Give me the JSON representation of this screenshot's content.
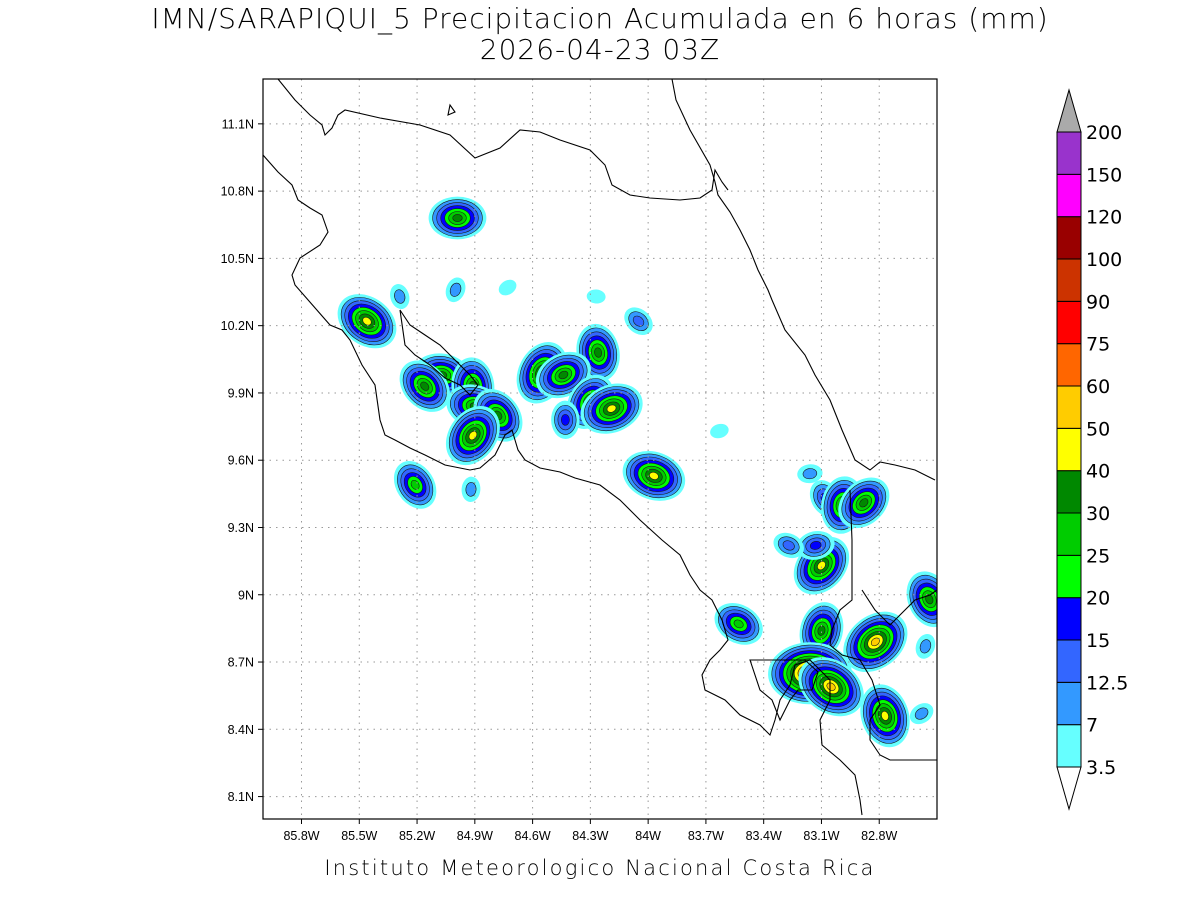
{
  "title": {
    "line1": "IMN/SARAPIQUI_5 Precipitacion Acumulada en 6 horas (mm)",
    "line2": "2026-04-23 03Z"
  },
  "footer": "Instituto Meteorologico Nacional Costa Rica",
  "map": {
    "lon_range": [
      -86.0,
      -82.5
    ],
    "lat_range": [
      8.0,
      11.3
    ],
    "lon_ticks": [
      "85.8W",
      "85.5W",
      "85.2W",
      "84.9W",
      "84.6W",
      "84.3W",
      "84W",
      "83.7W",
      "83.4W",
      "83.1W",
      "82.8W"
    ],
    "lon_values": [
      -85.8,
      -85.5,
      -85.2,
      -84.9,
      -84.6,
      -84.3,
      -84.0,
      -83.7,
      -83.4,
      -83.1,
      -82.8
    ],
    "lat_ticks": [
      "8.1N",
      "8.4N",
      "8.7N",
      "9N",
      "9.3N",
      "9.6N",
      "9.9N",
      "10.2N",
      "10.5N",
      "10.8N",
      "11.1N"
    ],
    "lat_values": [
      8.1,
      8.4,
      8.7,
      9.0,
      9.3,
      9.6,
      9.9,
      10.2,
      10.5,
      10.8,
      11.1
    ],
    "grid": "dotted"
  },
  "colorbar": {
    "levels": [
      "3.5",
      "7",
      "12.5",
      "15",
      "20",
      "25",
      "30",
      "40",
      "50",
      "60",
      "75",
      "90",
      "100",
      "120",
      "150",
      "200"
    ],
    "colors": [
      "#66ffff",
      "#3399ff",
      "#3366ff",
      "#0000ff",
      "#00ff00",
      "#00cc00",
      "#008800",
      "#ffff00",
      "#ffcc00",
      "#ff6600",
      "#ff0000",
      "#cc3300",
      "#990000",
      "#ff00ff",
      "#9933cc",
      "#f5f5f5",
      "#aaaaaa"
    ]
  },
  "precip_cells": [
    {
      "lon": -84.99,
      "lat": 10.68,
      "max": "30"
    },
    {
      "lon": -85.46,
      "lat": 10.22,
      "max": "40"
    },
    {
      "lon": -85.29,
      "lat": 10.33,
      "max": "7"
    },
    {
      "lon": -85.0,
      "lat": 10.36,
      "max": "7"
    },
    {
      "lon": -84.73,
      "lat": 10.37,
      "max": "3.5"
    },
    {
      "lon": -84.27,
      "lat": 10.33,
      "max": "3.5"
    },
    {
      "lon": -84.05,
      "lat": 10.22,
      "max": "12.5"
    },
    {
      "lon": -84.26,
      "lat": 10.08,
      "max": "30"
    },
    {
      "lon": -84.55,
      "lat": 9.99,
      "max": "40"
    },
    {
      "lon": -84.44,
      "lat": 9.98,
      "max": "30"
    },
    {
      "lon": -85.07,
      "lat": 9.98,
      "max": "30"
    },
    {
      "lon": -85.16,
      "lat": 9.93,
      "max": "30"
    },
    {
      "lon": -84.91,
      "lat": 9.93,
      "max": "30"
    },
    {
      "lon": -84.3,
      "lat": 9.86,
      "max": "30"
    },
    {
      "lon": -84.19,
      "lat": 9.83,
      "max": "40"
    },
    {
      "lon": -84.9,
      "lat": 9.84,
      "max": "30"
    },
    {
      "lon": -84.78,
      "lat": 9.8,
      "max": "30"
    },
    {
      "lon": -84.43,
      "lat": 9.78,
      "max": "15"
    },
    {
      "lon": -84.91,
      "lat": 9.71,
      "max": "40"
    },
    {
      "lon": -83.63,
      "lat": 9.73,
      "max": "3.5"
    },
    {
      "lon": -83.97,
      "lat": 9.53,
      "max": "40"
    },
    {
      "lon": -85.21,
      "lat": 9.49,
      "max": "25"
    },
    {
      "lon": -84.92,
      "lat": 9.47,
      "max": "7"
    },
    {
      "lon": -83.1,
      "lat": 9.13,
      "max": "40"
    },
    {
      "lon": -83.13,
      "lat": 9.22,
      "max": "15"
    },
    {
      "lon": -83.27,
      "lat": 9.22,
      "max": "12.5"
    },
    {
      "lon": -83.08,
      "lat": 9.43,
      "max": "15"
    },
    {
      "lon": -82.99,
      "lat": 9.4,
      "max": "30"
    },
    {
      "lon": -82.88,
      "lat": 9.41,
      "max": "30"
    },
    {
      "lon": -83.16,
      "lat": 9.54,
      "max": "7"
    },
    {
      "lon": -83.53,
      "lat": 8.87,
      "max": "25"
    },
    {
      "lon": -82.54,
      "lat": 8.98,
      "max": "30"
    },
    {
      "lon": -83.1,
      "lat": 8.84,
      "max": "30"
    },
    {
      "lon": -82.82,
      "lat": 8.79,
      "max": "50"
    },
    {
      "lon": -83.16,
      "lat": 8.65,
      "max": "75"
    },
    {
      "lon": -83.05,
      "lat": 8.59,
      "max": "50"
    },
    {
      "lon": -82.77,
      "lat": 8.46,
      "max": "40"
    },
    {
      "lon": -82.56,
      "lat": 8.77,
      "max": "7"
    },
    {
      "lon": -82.58,
      "lat": 8.47,
      "max": "7"
    }
  ]
}
